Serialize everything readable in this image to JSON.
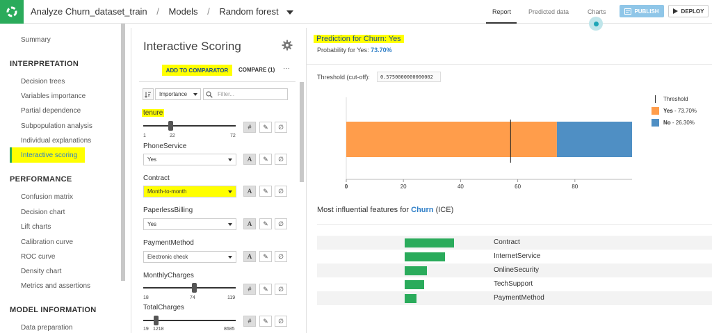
{
  "header": {
    "breadcrumb": [
      "Analyze Churn_dataset_train",
      "Models",
      "Random forest"
    ],
    "tabs": [
      "Report",
      "Predicted data",
      "Charts"
    ],
    "active_tab": "Report",
    "publish_label": "PUBLISH",
    "deploy_label": "DEPLOY"
  },
  "sidebar": {
    "summary": "Summary",
    "interpretation_heading": "INTERPRETATION",
    "interpretation_items": [
      "Decision trees",
      "Variables importance",
      "Partial dependence",
      "Subpopulation analysis",
      "Individual explanations",
      "Interactive scoring"
    ],
    "active_item": "Interactive scoring",
    "performance_heading": "PERFORMANCE",
    "performance_items": [
      "Confusion matrix",
      "Decision chart",
      "Lift charts",
      "Calibration curve",
      "ROC curve",
      "Density chart",
      "Metrics and assertions"
    ],
    "model_info_heading": "MODEL INFORMATION",
    "model_info_items": [
      "Data preparation"
    ]
  },
  "scoring": {
    "title": "Interactive Scoring",
    "add_to_comparator": "ADD TO COMPARATOR",
    "compare": "COMPARE (1)",
    "more": "···",
    "sort_by": "Importance",
    "filter_placeholder": "Filter...",
    "features": [
      {
        "name": "tenure",
        "kind": "numeric",
        "min": "1",
        "value": "22",
        "max": "72",
        "fraction": 0.296
      },
      {
        "name": "PhoneService",
        "kind": "categorical",
        "value": "Yes"
      },
      {
        "name": "Contract",
        "kind": "categorical",
        "value": "Month-to-month"
      },
      {
        "name": "PaperlessBilling",
        "kind": "categorical",
        "value": "Yes"
      },
      {
        "name": "PaymentMethod",
        "kind": "categorical",
        "value": "Electronic check"
      },
      {
        "name": "MonthlyCharges",
        "kind": "numeric",
        "min": "18",
        "value": "74",
        "max": "119",
        "fraction": 0.554
      },
      {
        "name": "TotalCharges",
        "kind": "numeric",
        "min": "19",
        "value": "1218",
        "max": "8685",
        "fraction": 0.138
      }
    ]
  },
  "prediction": {
    "title": "Prediction for Churn: Yes",
    "prob_prefix": "Probability for ",
    "prob_class": "Yes",
    "prob_value": "73.70%",
    "threshold_label": "Threshold (cut-off):",
    "threshold_value": "0.5750000000000002"
  },
  "chart_data": {
    "type": "bar",
    "orientation": "horizontal-stacked",
    "series": [
      {
        "name": "Yes",
        "value": 73.7,
        "color": "#ff9d4b"
      },
      {
        "name": "No",
        "value": 26.3,
        "color": "#4f8fc4"
      }
    ],
    "threshold": 57.5,
    "x_ticks": [
      0,
      20,
      40,
      60,
      80
    ],
    "xlim": [
      0,
      100
    ],
    "legend": {
      "threshold_label": "Threshold",
      "yes_label": "Yes",
      "yes_value": "73.70%",
      "no_label": "No",
      "no_value": "26.30%"
    }
  },
  "ice": {
    "title_prefix": "Most influential features for ",
    "target": "Churn",
    "title_suffix": " (ICE)",
    "features": [
      {
        "name": "Contract",
        "importance": 1.0
      },
      {
        "name": "InternetService",
        "importance": 0.82
      },
      {
        "name": "OnlineSecurity",
        "importance": 0.45
      },
      {
        "name": "TechSupport",
        "importance": 0.39
      },
      {
        "name": "PaymentMethod",
        "importance": 0.24
      }
    ],
    "bar_color": "#2aab5b"
  }
}
